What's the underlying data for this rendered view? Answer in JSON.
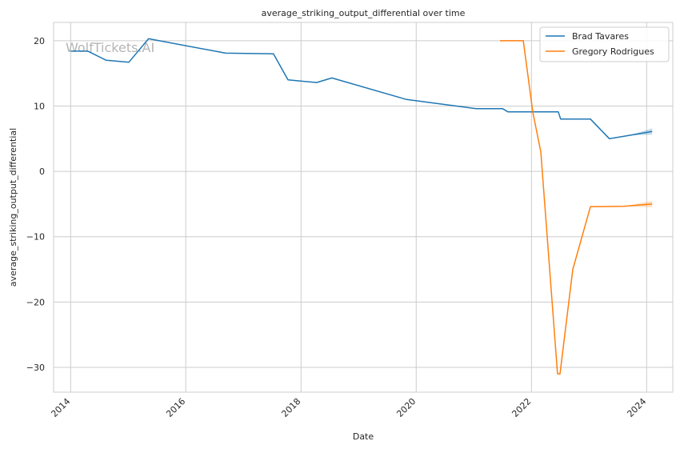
{
  "watermark": "WolfTickets.AI",
  "chart_data": {
    "type": "line",
    "title": "average_striking_output_differential over time",
    "xlabel": "Date",
    "ylabel": "average_striking_output_differential",
    "xlim": [
      "2013-09-15",
      "2024-06-15"
    ],
    "ylim": [
      -33.8,
      22.8
    ],
    "x_ticks": [
      "2014",
      "2016",
      "2018",
      "2020",
      "2022",
      "2024"
    ],
    "x_tick_dates": [
      "2014-01-01",
      "2016-01-01",
      "2018-01-01",
      "2020-01-01",
      "2022-01-01",
      "2024-01-01"
    ],
    "y_ticks": [
      20,
      10,
      0,
      -10,
      -20,
      -30
    ],
    "y_tick_labels": [
      "20",
      "10",
      "0",
      "−10",
      "−20",
      "−30"
    ],
    "grid": true,
    "legend_position": "top-right",
    "colors": {
      "Brad Tavares": "#1f77b4",
      "Gregory Rodrigues": "#ff7f0e"
    },
    "series": [
      {
        "name": "Brad Tavares",
        "color": "#1f77b4",
        "points": [
          {
            "x": "2014-01-01",
            "y": 18.4
          },
          {
            "x": "2014-04-20",
            "y": 18.4
          },
          {
            "x": "2014-08-15",
            "y": 17.0
          },
          {
            "x": "2015-01-05",
            "y": 16.7
          },
          {
            "x": "2015-05-10",
            "y": 20.3
          },
          {
            "x": "2016-09-10",
            "y": 18.1
          },
          {
            "x": "2017-07-10",
            "y": 18.0
          },
          {
            "x": "2017-10-10",
            "y": 14.0
          },
          {
            "x": "2018-04-10",
            "y": 13.6
          },
          {
            "x": "2018-07-15",
            "y": 14.3
          },
          {
            "x": "2019-11-01",
            "y": 11.0
          },
          {
            "x": "2021-01-15",
            "y": 9.6
          },
          {
            "x": "2021-07-01",
            "y": 9.6
          },
          {
            "x": "2021-08-05",
            "y": 9.1
          },
          {
            "x": "2022-06-20",
            "y": 9.1
          },
          {
            "x": "2022-07-05",
            "y": 8.0
          },
          {
            "x": "2023-01-10",
            "y": 8.0
          },
          {
            "x": "2023-05-10",
            "y": 5.0
          },
          {
            "x": "2023-09-10",
            "y": 5.5
          },
          {
            "x": "2024-02-05",
            "y": 6.1
          }
        ]
      },
      {
        "name": "Gregory Rodrigues",
        "color": "#ff7f0e",
        "points": [
          {
            "x": "2021-06-15",
            "y": 20.0
          },
          {
            "x": "2021-11-10",
            "y": 20.0
          },
          {
            "x": "2022-01-10",
            "y": 9.0
          },
          {
            "x": "2022-03-01",
            "y": 3.0
          },
          {
            "x": "2022-06-15",
            "y": -31.0
          },
          {
            "x": "2022-07-01",
            "y": -31.0
          },
          {
            "x": "2022-09-20",
            "y": -15.0
          },
          {
            "x": "2023-01-10",
            "y": -5.4
          },
          {
            "x": "2023-08-10",
            "y": -5.35
          },
          {
            "x": "2024-02-05",
            "y": -5.0
          }
        ]
      }
    ]
  }
}
